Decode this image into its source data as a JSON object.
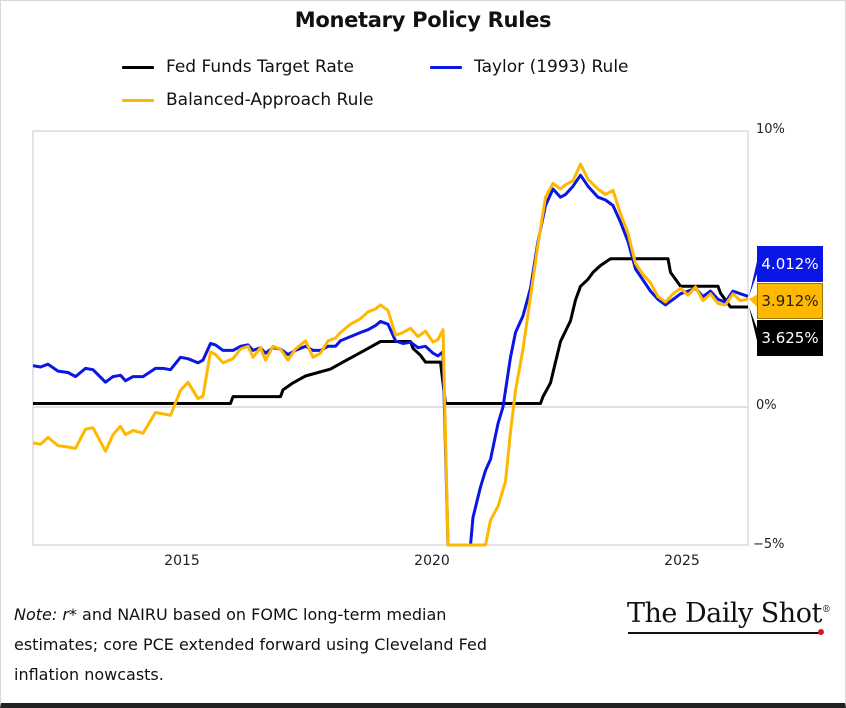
{
  "chart_data": {
    "type": "line",
    "title": "Monetary Policy Rules",
    "xlabel": "",
    "ylabel": "",
    "xlim": [
      2012.0,
      2026.3
    ],
    "ylim": [
      -5,
      10
    ],
    "x_ticks": [
      2015,
      2020,
      2025
    ],
    "x_tick_labels": [
      "2015",
      "2020",
      "2025"
    ],
    "y_ticks": [
      10,
      0,
      -5
    ],
    "y_tick_labels": [
      "10%",
      "0%",
      "−5%"
    ],
    "grid": "zero-line only",
    "legend_position": "top",
    "series": [
      {
        "name": "Fed Funds Target Rate",
        "color": "#000000",
        "end_label": "3.625%",
        "points": [
          [
            2012.0,
            0.125
          ],
          [
            2015.95,
            0.125
          ],
          [
            2016.0,
            0.375
          ],
          [
            2016.95,
            0.375
          ],
          [
            2017.0,
            0.625
          ],
          [
            2017.2,
            0.875
          ],
          [
            2017.45,
            1.125
          ],
          [
            2017.95,
            1.375
          ],
          [
            2018.2,
            1.625
          ],
          [
            2018.45,
            1.875
          ],
          [
            2018.7,
            2.125
          ],
          [
            2018.95,
            2.375
          ],
          [
            2019.55,
            2.375
          ],
          [
            2019.6,
            2.125
          ],
          [
            2019.75,
            1.875
          ],
          [
            2019.85,
            1.625
          ],
          [
            2020.15,
            1.625
          ],
          [
            2020.2,
            0.875
          ],
          [
            2020.25,
            0.125
          ],
          [
            2022.15,
            0.125
          ],
          [
            2022.2,
            0.375
          ],
          [
            2022.35,
            0.875
          ],
          [
            2022.45,
            1.625
          ],
          [
            2022.55,
            2.375
          ],
          [
            2022.75,
            3.125
          ],
          [
            2022.85,
            3.875
          ],
          [
            2022.95,
            4.375
          ],
          [
            2023.1,
            4.625
          ],
          [
            2023.2,
            4.875
          ],
          [
            2023.35,
            5.125
          ],
          [
            2023.55,
            5.375
          ],
          [
            2024.7,
            5.375
          ],
          [
            2024.75,
            4.875
          ],
          [
            2024.85,
            4.625
          ],
          [
            2024.95,
            4.375
          ],
          [
            2025.7,
            4.375
          ],
          [
            2025.75,
            4.125
          ],
          [
            2025.85,
            3.875
          ],
          [
            2025.95,
            3.625
          ],
          [
            2026.3,
            3.625
          ]
        ]
      },
      {
        "name": "Taylor (1993) Rule",
        "color": "#0a16e6",
        "end_label": "4.012%",
        "points": [
          [
            2012.0,
            1.5
          ],
          [
            2012.15,
            1.45
          ],
          [
            2012.3,
            1.55
          ],
          [
            2012.5,
            1.3
          ],
          [
            2012.7,
            1.25
          ],
          [
            2012.85,
            1.1
          ],
          [
            2013.05,
            1.4
          ],
          [
            2013.2,
            1.35
          ],
          [
            2013.45,
            0.9
          ],
          [
            2013.6,
            1.1
          ],
          [
            2013.75,
            1.15
          ],
          [
            2013.85,
            0.95
          ],
          [
            2014.0,
            1.1
          ],
          [
            2014.2,
            1.1
          ],
          [
            2014.45,
            1.4
          ],
          [
            2014.6,
            1.4
          ],
          [
            2014.75,
            1.35
          ],
          [
            2014.95,
            1.8
          ],
          [
            2015.1,
            1.75
          ],
          [
            2015.3,
            1.6
          ],
          [
            2015.4,
            1.7
          ],
          [
            2015.55,
            2.3
          ],
          [
            2015.65,
            2.25
          ],
          [
            2015.8,
            2.05
          ],
          [
            2016.0,
            2.05
          ],
          [
            2016.15,
            2.2
          ],
          [
            2016.3,
            2.25
          ],
          [
            2016.4,
            2.05
          ],
          [
            2016.55,
            2.15
          ],
          [
            2016.65,
            1.95
          ],
          [
            2016.8,
            2.15
          ],
          [
            2016.95,
            2.1
          ],
          [
            2017.1,
            1.9
          ],
          [
            2017.25,
            2.05
          ],
          [
            2017.45,
            2.2
          ],
          [
            2017.6,
            2.05
          ],
          [
            2017.75,
            2.05
          ],
          [
            2017.9,
            2.2
          ],
          [
            2018.05,
            2.2
          ],
          [
            2018.15,
            2.4
          ],
          [
            2018.35,
            2.55
          ],
          [
            2018.55,
            2.7
          ],
          [
            2018.7,
            2.8
          ],
          [
            2018.85,
            2.95
          ],
          [
            2018.95,
            3.1
          ],
          [
            2019.1,
            3.0
          ],
          [
            2019.25,
            2.4
          ],
          [
            2019.4,
            2.3
          ],
          [
            2019.55,
            2.35
          ],
          [
            2019.7,
            2.15
          ],
          [
            2019.85,
            2.2
          ],
          [
            2020.0,
            1.95
          ],
          [
            2020.1,
            1.85
          ],
          [
            2020.2,
            2.0
          ],
          [
            2020.3,
            -5.5
          ],
          [
            2020.75,
            -5.5
          ],
          [
            2020.8,
            -4.0
          ],
          [
            2020.95,
            -2.9
          ],
          [
            2021.05,
            -2.3
          ],
          [
            2021.15,
            -1.9
          ],
          [
            2021.3,
            -0.6
          ],
          [
            2021.4,
            0.0
          ],
          [
            2021.55,
            1.8
          ],
          [
            2021.65,
            2.7
          ],
          [
            2021.8,
            3.3
          ],
          [
            2021.95,
            4.3
          ],
          [
            2022.1,
            6.0
          ],
          [
            2022.25,
            7.3
          ],
          [
            2022.4,
            7.9
          ],
          [
            2022.55,
            7.6
          ],
          [
            2022.65,
            7.7
          ],
          [
            2022.8,
            8.0
          ],
          [
            2022.95,
            8.4
          ],
          [
            2023.1,
            8.0
          ],
          [
            2023.3,
            7.6
          ],
          [
            2023.45,
            7.5
          ],
          [
            2023.6,
            7.3
          ],
          [
            2023.75,
            6.7
          ],
          [
            2023.9,
            6.0
          ],
          [
            2024.05,
            5.0
          ],
          [
            2024.2,
            4.6
          ],
          [
            2024.35,
            4.2
          ],
          [
            2024.5,
            3.9
          ],
          [
            2024.65,
            3.7
          ],
          [
            2024.8,
            3.9
          ],
          [
            2024.95,
            4.1
          ],
          [
            2025.1,
            4.2
          ],
          [
            2025.25,
            4.3
          ],
          [
            2025.4,
            4.0
          ],
          [
            2025.55,
            4.2
          ],
          [
            2025.7,
            3.9
          ],
          [
            2025.85,
            3.8
          ],
          [
            2026.0,
            4.2
          ],
          [
            2026.15,
            4.1
          ],
          [
            2026.3,
            4.012
          ]
        ]
      },
      {
        "name": "Balanced-Approach Rule",
        "color": "#ffb800",
        "end_label": "3.912%",
        "points": [
          [
            2012.0,
            -1.3
          ],
          [
            2012.15,
            -1.35
          ],
          [
            2012.3,
            -1.1
          ],
          [
            2012.5,
            -1.4
          ],
          [
            2012.7,
            -1.45
          ],
          [
            2012.85,
            -1.5
          ],
          [
            2013.05,
            -0.8
          ],
          [
            2013.2,
            -0.75
          ],
          [
            2013.45,
            -1.6
          ],
          [
            2013.6,
            -1.0
          ],
          [
            2013.75,
            -0.7
          ],
          [
            2013.85,
            -1.0
          ],
          [
            2014.0,
            -0.85
          ],
          [
            2014.2,
            -0.95
          ],
          [
            2014.45,
            -0.2
          ],
          [
            2014.6,
            -0.25
          ],
          [
            2014.75,
            -0.3
          ],
          [
            2014.95,
            0.6
          ],
          [
            2015.1,
            0.9
          ],
          [
            2015.3,
            0.3
          ],
          [
            2015.4,
            0.4
          ],
          [
            2015.55,
            2.0
          ],
          [
            2015.65,
            1.9
          ],
          [
            2015.8,
            1.6
          ],
          [
            2016.0,
            1.75
          ],
          [
            2016.15,
            2.1
          ],
          [
            2016.3,
            2.2
          ],
          [
            2016.4,
            1.8
          ],
          [
            2016.55,
            2.15
          ],
          [
            2016.65,
            1.7
          ],
          [
            2016.8,
            2.2
          ],
          [
            2016.95,
            2.1
          ],
          [
            2017.1,
            1.7
          ],
          [
            2017.25,
            2.1
          ],
          [
            2017.45,
            2.4
          ],
          [
            2017.6,
            1.8
          ],
          [
            2017.75,
            1.95
          ],
          [
            2017.9,
            2.4
          ],
          [
            2018.05,
            2.5
          ],
          [
            2018.15,
            2.7
          ],
          [
            2018.35,
            3.0
          ],
          [
            2018.55,
            3.2
          ],
          [
            2018.7,
            3.45
          ],
          [
            2018.85,
            3.55
          ],
          [
            2018.95,
            3.7
          ],
          [
            2019.1,
            3.5
          ],
          [
            2019.25,
            2.6
          ],
          [
            2019.4,
            2.7
          ],
          [
            2019.55,
            2.85
          ],
          [
            2019.7,
            2.55
          ],
          [
            2019.85,
            2.75
          ],
          [
            2020.0,
            2.35
          ],
          [
            2020.1,
            2.45
          ],
          [
            2020.2,
            2.8
          ],
          [
            2020.3,
            -5.5
          ],
          [
            2021.05,
            -5.5
          ],
          [
            2021.15,
            -4.1
          ],
          [
            2021.3,
            -3.6
          ],
          [
            2021.45,
            -2.7
          ],
          [
            2021.55,
            -0.9
          ],
          [
            2021.65,
            0.6
          ],
          [
            2021.8,
            2.1
          ],
          [
            2021.95,
            4.0
          ],
          [
            2022.1,
            5.9
          ],
          [
            2022.25,
            7.6
          ],
          [
            2022.4,
            8.1
          ],
          [
            2022.55,
            7.9
          ],
          [
            2022.65,
            8.05
          ],
          [
            2022.8,
            8.2
          ],
          [
            2022.95,
            8.8
          ],
          [
            2023.1,
            8.25
          ],
          [
            2023.3,
            7.9
          ],
          [
            2023.45,
            7.7
          ],
          [
            2023.6,
            7.85
          ],
          [
            2023.75,
            7.0
          ],
          [
            2023.9,
            6.3
          ],
          [
            2024.05,
            5.2
          ],
          [
            2024.2,
            4.8
          ],
          [
            2024.35,
            4.5
          ],
          [
            2024.5,
            4.0
          ],
          [
            2024.65,
            3.8
          ],
          [
            2024.8,
            4.1
          ],
          [
            2024.95,
            4.3
          ],
          [
            2025.1,
            4.05
          ],
          [
            2025.25,
            4.35
          ],
          [
            2025.4,
            3.85
          ],
          [
            2025.55,
            4.1
          ],
          [
            2025.7,
            3.75
          ],
          [
            2025.85,
            3.7
          ],
          [
            2026.0,
            4.1
          ],
          [
            2026.15,
            3.85
          ],
          [
            2026.3,
            3.912
          ]
        ]
      }
    ]
  },
  "legend": [
    {
      "label": "Fed Funds Target Rate",
      "color": "#000000"
    },
    {
      "label": "Taylor (1993) Rule",
      "color": "#0a16e6"
    },
    {
      "label": "Balanced-Approach Rule",
      "color": "#ffb800"
    }
  ],
  "end_labels": {
    "taylor": {
      "text": "4.012%",
      "bg": "#0a16e6",
      "fg": "#ffffff"
    },
    "balanced": {
      "text": "3.912%",
      "bg": "#ffb800",
      "fg": "#222222"
    },
    "fed": {
      "text": "3.625%",
      "bg": "#000000",
      "fg": "#ffffff"
    }
  },
  "note": {
    "prefix": "Note:",
    "r_star": "r*",
    "text": " and NAIRU based on FOMC long-term median estimates; core PCE extended forward using Cleveland Fed inflation nowcasts."
  },
  "brand": {
    "name": "The Daily Shot",
    "reg": "®"
  }
}
